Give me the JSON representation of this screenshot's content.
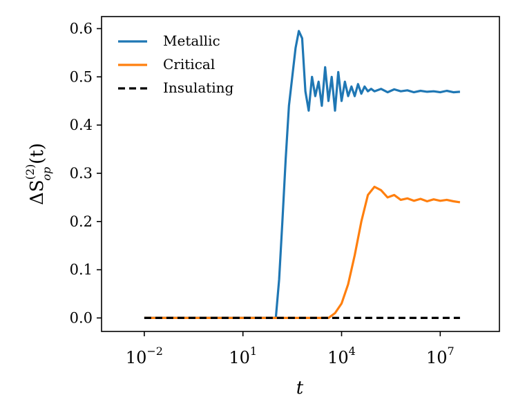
{
  "chart_data": {
    "type": "line",
    "title": "",
    "xlabel": "t",
    "ylabel": "ΔS_op^(2)(t)",
    "ylabel_main": "ΔS",
    "ylabel_sup": "(2)",
    "ylabel_sub": "op",
    "ylabel_arg": "(t)",
    "x_scale": "log",
    "xlim_log10": [
      -3.3,
      8.8
    ],
    "ylim": [
      -0.028,
      0.625
    ],
    "x_ticks": [
      {
        "base": "10",
        "exp": "−2",
        "log10": -2
      },
      {
        "base": "10",
        "exp": "1",
        "log10": 1
      },
      {
        "base": "10",
        "exp": "4",
        "log10": 4
      },
      {
        "base": "10",
        "exp": "7",
        "log10": 7
      }
    ],
    "y_ticks": [
      {
        "label": "0.0",
        "value": 0.0
      },
      {
        "label": "0.1",
        "value": 0.1
      },
      {
        "label": "0.2",
        "value": 0.2
      },
      {
        "label": "0.3",
        "value": 0.3
      },
      {
        "label": "0.4",
        "value": 0.4
      },
      {
        "label": "0.5",
        "value": 0.5
      },
      {
        "label": "0.6",
        "value": 0.6
      }
    ],
    "legend_position": "top-left",
    "series": [
      {
        "name": "Metallic",
        "color": "#1f77b4",
        "style": "solid",
        "log10_t": [
          -2.0,
          2.0,
          2.1,
          2.2,
          2.3,
          2.4,
          2.5,
          2.6,
          2.7,
          2.8,
          2.9,
          3.0,
          3.1,
          3.2,
          3.3,
          3.4,
          3.5,
          3.6,
          3.7,
          3.8,
          3.9,
          4.0,
          4.1,
          4.2,
          4.3,
          4.4,
          4.5,
          4.6,
          4.7,
          4.8,
          4.9,
          5.0,
          5.2,
          5.4,
          5.6,
          5.8,
          6.0,
          6.2,
          6.4,
          6.6,
          6.8,
          7.0,
          7.2,
          7.4,
          7.6
        ],
        "values": [
          0.0,
          0.0,
          0.08,
          0.2,
          0.33,
          0.44,
          0.5,
          0.56,
          0.595,
          0.58,
          0.47,
          0.43,
          0.5,
          0.46,
          0.49,
          0.44,
          0.52,
          0.45,
          0.5,
          0.43,
          0.51,
          0.45,
          0.49,
          0.46,
          0.48,
          0.46,
          0.485,
          0.465,
          0.48,
          0.47,
          0.475,
          0.47,
          0.475,
          0.468,
          0.474,
          0.47,
          0.472,
          0.468,
          0.471,
          0.469,
          0.47,
          0.468,
          0.471,
          0.468,
          0.469
        ]
      },
      {
        "name": "Critical",
        "color": "#ff7f0e",
        "style": "solid",
        "log10_t": [
          -2.0,
          3.6,
          3.8,
          4.0,
          4.2,
          4.4,
          4.6,
          4.8,
          5.0,
          5.2,
          5.4,
          5.6,
          5.8,
          6.0,
          6.2,
          6.4,
          6.6,
          6.8,
          7.0,
          7.2,
          7.4,
          7.6
        ],
        "values": [
          0.0,
          0.0,
          0.01,
          0.03,
          0.07,
          0.13,
          0.2,
          0.255,
          0.272,
          0.265,
          0.25,
          0.255,
          0.245,
          0.248,
          0.243,
          0.247,
          0.242,
          0.246,
          0.243,
          0.245,
          0.242,
          0.24
        ]
      },
      {
        "name": "Insulating",
        "color": "#000000",
        "style": "dashed",
        "log10_t": [
          -2.0,
          7.6
        ],
        "values": [
          0.0,
          0.0
        ]
      }
    ]
  }
}
